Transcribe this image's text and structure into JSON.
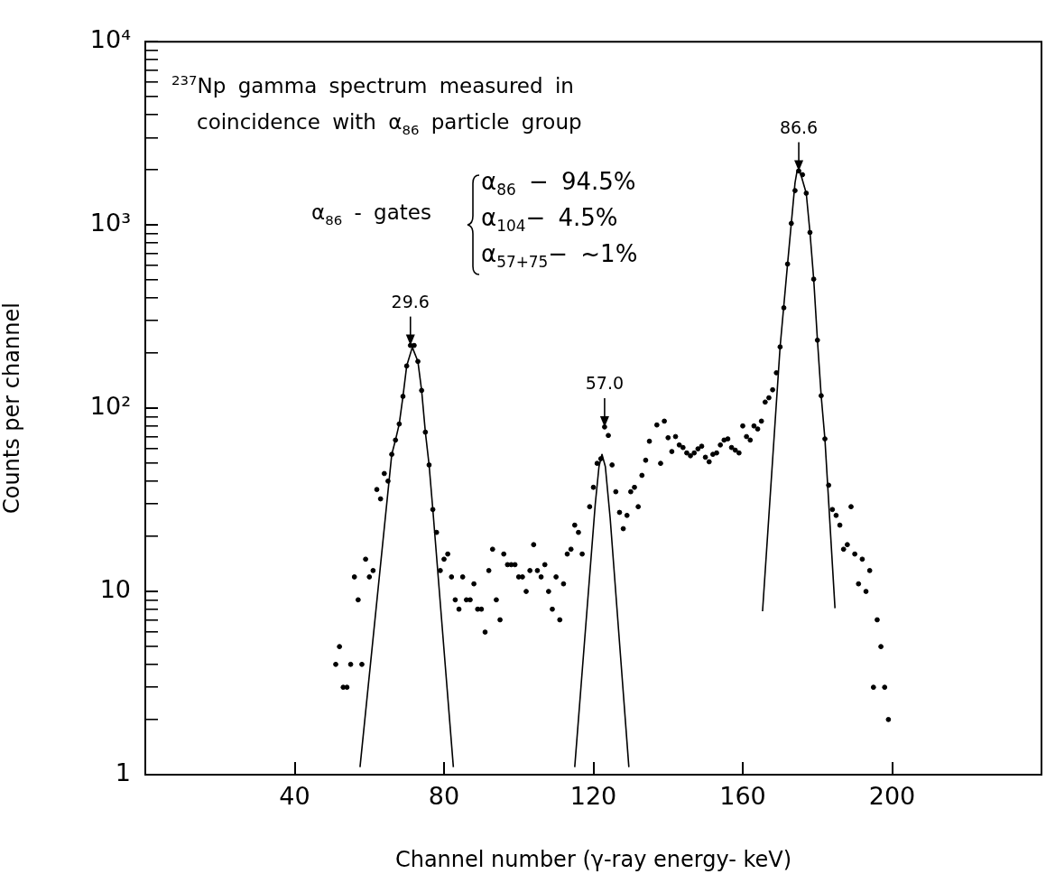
{
  "chart_data": {
    "type": "scatter",
    "xlabel": "Channel number (γ-ray energy- keV)",
    "ylabel": "Counts per channel",
    "log": "y",
    "xlim": [
      0,
      240
    ],
    "xticks": [
      40,
      80,
      120,
      160,
      200
    ],
    "ylim": [
      1,
      10000
    ],
    "yticks": [
      1,
      {
        "value": 2,
        "label": null
      },
      {
        "value": 3,
        "label": null
      },
      {
        "value": 4,
        "label": null
      },
      {
        "value": 5,
        "label": null
      },
      {
        "value": 6,
        "label": null
      },
      {
        "value": 7,
        "label": null
      },
      {
        "value": 8,
        "label": null
      },
      {
        "value": 9,
        "label": null
      },
      10,
      {
        "value": 20,
        "label": null
      },
      {
        "value": 30,
        "label": null
      },
      {
        "value": 40,
        "label": null
      },
      {
        "value": 50,
        "label": null
      },
      {
        "value": 60,
        "label": null
      },
      {
        "value": 70,
        "label": null
      },
      {
        "value": 80,
        "label": null
      },
      {
        "value": 90,
        "label": null
      },
      {
        "value": 100,
        "label": "10²"
      },
      {
        "value": 200,
        "label": null
      },
      {
        "value": 300,
        "label": null
      },
      {
        "value": 400,
        "label": null
      },
      {
        "value": 500,
        "label": null
      },
      {
        "value": 600,
        "label": null
      },
      {
        "value": 700,
        "label": null
      },
      {
        "value": 800,
        "label": null
      },
      {
        "value": 900,
        "label": null
      },
      {
        "value": 1000,
        "label": "10³"
      },
      {
        "value": 2000,
        "label": null
      },
      {
        "value": 3000,
        "label": null
      },
      {
        "value": 4000,
        "label": null
      },
      {
        "value": 5000,
        "label": null
      },
      {
        "value": 6000,
        "label": null
      },
      {
        "value": 7000,
        "label": null
      },
      {
        "value": 8000,
        "label": null
      },
      {
        "value": 9000,
        "label": null
      },
      {
        "value": 10000,
        "label": "10⁴"
      }
    ],
    "series": [
      {
        "color": "#000000",
        "marker": "circle",
        "x": [
          51,
          52,
          53,
          54,
          55,
          56,
          57,
          58,
          59,
          60,
          61,
          62,
          63,
          64,
          65,
          66,
          67,
          68,
          69,
          70,
          71,
          72,
          73,
          74,
          75,
          76,
          77,
          78,
          79,
          80,
          81,
          82,
          83,
          84,
          85,
          86,
          87,
          88,
          89,
          90,
          91,
          92,
          93,
          94,
          95,
          96,
          97,
          98,
          99,
          100,
          101,
          102,
          103,
          104,
          105,
          106,
          107,
          108,
          109,
          110,
          111,
          112,
          113,
          114,
          115,
          116,
          117,
          119,
          120,
          121,
          122,
          123,
          124,
          125,
          126,
          127,
          128,
          129,
          130,
          131,
          132,
          133,
          134,
          135,
          137,
          138,
          139,
          140,
          141,
          142,
          143,
          144,
          145,
          146,
          147,
          148,
          149,
          150,
          151,
          152,
          153,
          154,
          155,
          156,
          157,
          158,
          159,
          160,
          161,
          162,
          163,
          164,
          165,
          166,
          167,
          168,
          169,
          170,
          171,
          172,
          173,
          174,
          175,
          176,
          177,
          178,
          179,
          180,
          181,
          182,
          183,
          184,
          185,
          186,
          187,
          188,
          189,
          190,
          191,
          192,
          193,
          194,
          195,
          196,
          197,
          198,
          199
        ],
        "values": [
          4,
          5,
          3,
          3,
          4,
          12,
          9,
          4,
          15,
          12,
          13,
          36,
          32,
          44,
          40,
          56,
          67,
          82,
          116,
          170,
          220,
          220,
          180,
          125,
          74,
          49,
          28,
          21,
          13,
          15,
          16,
          12,
          9,
          8,
          12,
          9,
          9,
          11,
          8,
          8,
          6,
          13,
          17,
          9,
          7,
          16,
          14,
          14,
          14,
          12,
          12,
          10,
          13,
          18,
          13,
          12,
          14,
          10,
          8,
          12,
          7,
          11,
          16,
          17,
          23,
          21,
          16,
          29,
          37,
          50,
          53,
          79,
          71,
          49,
          35,
          27,
          22,
          26,
          35,
          37,
          29,
          43,
          52,
          66,
          81,
          50,
          85,
          69,
          58,
          70,
          63,
          61,
          57,
          55,
          57,
          60,
          62,
          54,
          51,
          56,
          57,
          63,
          67,
          68,
          61,
          59,
          57,
          80,
          70,
          67,
          80,
          77,
          85,
          108,
          114,
          126,
          156,
          216,
          353,
          612,
          1020,
          1540,
          1970,
          1880,
          1490,
          910,
          506,
          235,
          117,
          68,
          38,
          28,
          26,
          23,
          17,
          18,
          29,
          16,
          11,
          15,
          10,
          13,
          3,
          7,
          5,
          3,
          2
        ]
      },
      {
        "type": "line",
        "color": "#000000",
        "marker": "none",
        "line_style": "solid",
        "x": [
          57.5,
          66,
          67,
          68,
          69,
          70,
          71.5,
          73,
          74,
          75,
          76,
          77,
          82.5
        ],
        "values": [
          1.1,
          56,
          67,
          82,
          116,
          170,
          215,
          180,
          125,
          74,
          49,
          28,
          1.1
        ]
      },
      {
        "type": "line",
        "color": "#000000",
        "marker": "none",
        "line_style": "solid",
        "x": [
          115,
          120.5,
          121.5,
          122.3,
          123.2,
          124.5,
          129.5
        ],
        "values": [
          1.1,
          30,
          48,
          56,
          48,
          25,
          1.1
        ]
      },
      {
        "type": "line",
        "color": "#000000",
        "marker": "none",
        "line_style": "solid",
        "x": [
          165.3,
          170,
          172,
          173,
          174,
          174.6,
          175.5,
          177,
          178,
          179,
          180,
          181,
          182,
          184.7
        ],
        "values": [
          7.8,
          216,
          612,
          1020,
          1700,
          2000,
          1900,
          1490,
          910,
          506,
          235,
          117,
          68,
          8.1
        ]
      }
    ],
    "annotations": [
      "$^{237}$Np gamma spectrum measured in",
      "coincidence with α$_{86}$ particle group",
      "α$_{86}$ - gates",
      "α$_{86}$ − 94.5%",
      "α$_{104}$− 4.5%",
      "α$_{57+75}$− ~1%",
      {
        "text": "29.6",
        "x": 71,
        "y": 220
      },
      {
        "text": "57.0",
        "x": 123,
        "y": 79
      },
      {
        "text": "86.6",
        "x": 175,
        "y": 1970
      }
    ]
  }
}
